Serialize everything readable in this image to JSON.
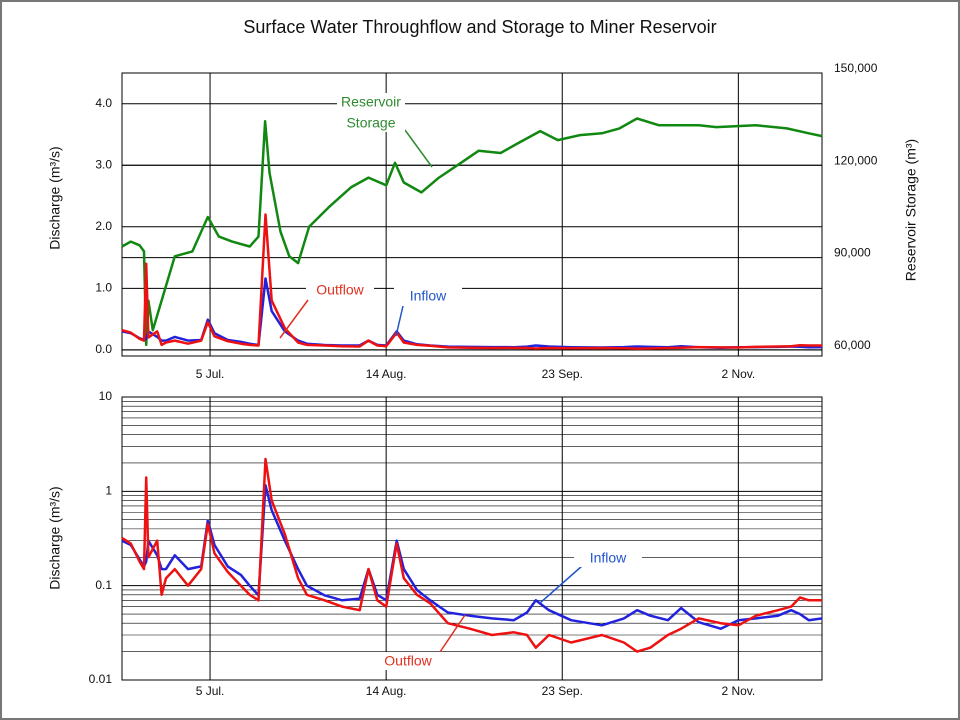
{
  "chart_data": [
    {
      "type": "line",
      "title": "Surface Water Throughflow and Storage to Miner Reservoir",
      "ylabel": "Discharge (m³/s)",
      "y2label": "Reservoir Storage (m³)",
      "xlim": [
        166,
        325
      ],
      "xticks": [
        {
          "value": 186,
          "label": "5 Jul."
        },
        {
          "value": 226,
          "label": "14 Aug."
        },
        {
          "value": 266,
          "label": "23 Sep."
        },
        {
          "value": 306,
          "label": "2 Nov."
        }
      ],
      "ylim": [
        -0.1,
        4.5
      ],
      "yticks": [
        {
          "value": 0,
          "label": "0.0"
        },
        {
          "value": 1,
          "label": "1.0"
        },
        {
          "value": 2,
          "label": "2.0"
        },
        {
          "value": 3,
          "label": "3.0"
        },
        {
          "value": 4,
          "label": "4.0"
        }
      ],
      "y2lim": [
        58000,
        150000
      ],
      "y2ticks": [
        {
          "value": 60000,
          "label": "60,000"
        },
        {
          "value": 90000,
          "label": "90,000"
        },
        {
          "value": 120000,
          "label": "120,000"
        },
        {
          "value": 150000,
          "label": "150,000"
        }
      ],
      "grid": true,
      "annotations": [
        {
          "lines": [
            "Reservoir",
            "Storage"
          ],
          "color": "#2e8b2e"
        },
        {
          "lines": [
            "Outflow"
          ],
          "color": "#e03020"
        },
        {
          "lines": [
            "Inflow"
          ],
          "color": "#2255cc"
        }
      ],
      "series": [
        {
          "name": "Reservoir Storage",
          "color": "#118811",
          "axis": "y2",
          "x": [
            166,
            168,
            170,
            171,
            171.5,
            172,
            173,
            175,
            178,
            182,
            185.5,
            188,
            191,
            195,
            197,
            198.5,
            199.5,
            202,
            204,
            206,
            208.5,
            213,
            218,
            222,
            226,
            228,
            230,
            234,
            238,
            243,
            247,
            252,
            256,
            261,
            265,
            270,
            275,
            279,
            283,
            288,
            297,
            301,
            310,
            317,
            322,
            325
          ],
          "values": [
            93600,
            95200,
            94000,
            92000,
            61600,
            76000,
            66400,
            76000,
            90400,
            92000,
            103200,
            96800,
            95200,
            93600,
            96800,
            134300,
            117600,
            98400,
            90400,
            88200,
            100000,
            106400,
            112800,
            116000,
            113500,
            120800,
            114400,
            111200,
            116000,
            120800,
            124700,
            124000,
            127200,
            131100,
            128200,
            129800,
            130400,
            132000,
            135200,
            133000,
            133000,
            132400,
            133000,
            132000,
            130400,
            129500
          ]
        },
        {
          "name": "Inflow",
          "color": "#2222dd",
          "x": [
            166,
            168,
            170,
            171,
            171.5,
            172,
            174,
            175,
            176,
            178,
            181,
            184,
            185.5,
            187,
            190,
            193,
            195,
            197,
            198.6,
            200,
            203,
            206,
            208,
            212,
            216,
            220,
            222,
            224,
            226,
            228.4,
            230,
            233,
            236,
            240,
            245,
            250,
            255,
            258,
            260,
            263,
            268,
            275,
            280,
            283,
            286,
            290,
            293,
            297,
            302,
            306,
            310,
            315,
            318,
            320,
            322,
            325
          ],
          "values": [
            0.3,
            0.27,
            0.19,
            0.16,
            0.18,
            0.3,
            0.21,
            0.15,
            0.15,
            0.21,
            0.15,
            0.16,
            0.49,
            0.27,
            0.16,
            0.13,
            0.1,
            0.079,
            1.16,
            0.63,
            0.3,
            0.15,
            0.1,
            0.079,
            0.07,
            0.073,
            0.15,
            0.08,
            0.07,
            0.3,
            0.15,
            0.09,
            0.07,
            0.052,
            0.048,
            0.045,
            0.043,
            0.052,
            0.07,
            0.055,
            0.043,
            0.038,
            0.045,
            0.055,
            0.048,
            0.043,
            0.058,
            0.041,
            0.035,
            0.043,
            0.045,
            0.048,
            0.055,
            0.05,
            0.043,
            0.045
          ]
        },
        {
          "name": "Outflow",
          "color": "#ee1111",
          "x": [
            166,
            168,
            170,
            171,
            171.5,
            172,
            174,
            175,
            176,
            178,
            181,
            184,
            185.5,
            187,
            190,
            193,
            195,
            197,
            198.6,
            200,
            203,
            206,
            208,
            212,
            216,
            220,
            222,
            224,
            226,
            228.4,
            230,
            233,
            236,
            240,
            245,
            250,
            255,
            258,
            260,
            263,
            268,
            275,
            280,
            283,
            286,
            290,
            293,
            297,
            302,
            306,
            310,
            315,
            318,
            320,
            322,
            325
          ],
          "values": [
            0.32,
            0.28,
            0.18,
            0.15,
            1.4,
            0.2,
            0.3,
            0.08,
            0.12,
            0.15,
            0.1,
            0.15,
            0.45,
            0.22,
            0.14,
            0.1,
            0.08,
            0.07,
            2.2,
            0.8,
            0.35,
            0.12,
            0.08,
            0.07,
            0.06,
            0.055,
            0.15,
            0.07,
            0.06,
            0.28,
            0.12,
            0.08,
            0.065,
            0.04,
            0.035,
            0.03,
            0.032,
            0.03,
            0.022,
            0.03,
            0.025,
            0.03,
            0.025,
            0.02,
            0.022,
            0.03,
            0.035,
            0.045,
            0.04,
            0.038,
            0.048,
            0.055,
            0.06,
            0.075,
            0.07,
            0.07
          ]
        }
      ]
    },
    {
      "type": "line",
      "log_y": true,
      "minor_grid": true,
      "ylabel": "Discharge (m³/s)",
      "xlim": [
        166,
        325
      ],
      "xticks": [
        {
          "value": 186,
          "label": "5 Jul."
        },
        {
          "value": 226,
          "label": "14 Aug."
        },
        {
          "value": 266,
          "label": "23 Sep."
        },
        {
          "value": 306,
          "label": "2 Nov."
        }
      ],
      "ylim": [
        0.01,
        10
      ],
      "yticks": [
        0.01,
        0.1,
        1,
        10
      ],
      "grid": true,
      "annotations": [
        {
          "lines": [
            "Inflow"
          ],
          "color": "#2255cc"
        },
        {
          "lines": [
            "Outflow"
          ],
          "color": "#e03020"
        }
      ],
      "series": [
        {
          "name": "Inflow",
          "color": "#2222dd",
          "x": [
            166,
            168,
            170,
            171,
            171.5,
            172,
            174,
            175,
            176,
            178,
            181,
            184,
            185.5,
            187,
            190,
            193,
            195,
            197,
            198.6,
            200,
            203,
            206,
            208,
            212,
            216,
            220,
            222,
            224,
            226,
            228.4,
            230,
            233,
            236,
            240,
            245,
            250,
            255,
            258,
            260,
            263,
            268,
            275,
            280,
            283,
            286,
            290,
            293,
            297,
            302,
            306,
            310,
            315,
            318,
            320,
            322,
            325
          ],
          "values": [
            0.3,
            0.27,
            0.19,
            0.16,
            0.18,
            0.3,
            0.21,
            0.15,
            0.15,
            0.21,
            0.15,
            0.16,
            0.49,
            0.27,
            0.16,
            0.13,
            0.1,
            0.079,
            1.16,
            0.63,
            0.3,
            0.15,
            0.1,
            0.079,
            0.07,
            0.073,
            0.15,
            0.08,
            0.07,
            0.3,
            0.15,
            0.09,
            0.07,
            0.052,
            0.048,
            0.045,
            0.043,
            0.052,
            0.07,
            0.055,
            0.043,
            0.038,
            0.045,
            0.055,
            0.048,
            0.043,
            0.058,
            0.041,
            0.035,
            0.043,
            0.045,
            0.048,
            0.055,
            0.05,
            0.043,
            0.045
          ]
        },
        {
          "name": "Outflow",
          "color": "#ee1111",
          "x": [
            166,
            168,
            170,
            171,
            171.5,
            172,
            174,
            175,
            176,
            178,
            181,
            184,
            185.5,
            187,
            190,
            193,
            195,
            197,
            198.6,
            200,
            203,
            206,
            208,
            212,
            216,
            220,
            222,
            224,
            226,
            228.4,
            230,
            233,
            236,
            240,
            245,
            250,
            255,
            258,
            260,
            263,
            268,
            275,
            280,
            283,
            286,
            290,
            293,
            297,
            302,
            306,
            310,
            315,
            318,
            320,
            322,
            325
          ],
          "values": [
            0.32,
            0.28,
            0.18,
            0.15,
            1.4,
            0.2,
            0.3,
            0.08,
            0.12,
            0.15,
            0.1,
            0.15,
            0.45,
            0.22,
            0.14,
            0.1,
            0.08,
            0.07,
            2.2,
            0.8,
            0.35,
            0.12,
            0.08,
            0.07,
            0.06,
            0.055,
            0.15,
            0.07,
            0.06,
            0.28,
            0.12,
            0.08,
            0.065,
            0.04,
            0.035,
            0.03,
            0.032,
            0.03,
            0.022,
            0.03,
            0.025,
            0.03,
            0.025,
            0.02,
            0.022,
            0.03,
            0.035,
            0.045,
            0.04,
            0.038,
            0.048,
            0.055,
            0.06,
            0.075,
            0.07,
            0.07
          ]
        }
      ]
    }
  ]
}
